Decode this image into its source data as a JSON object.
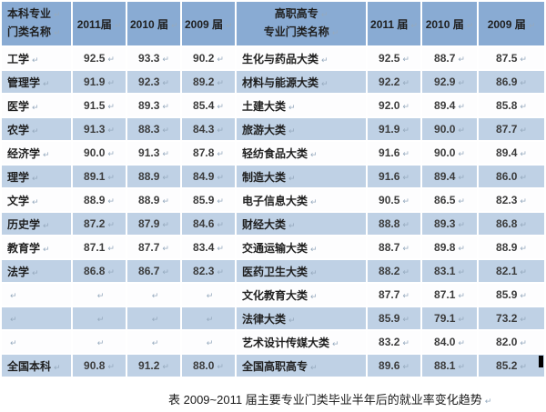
{
  "paragraph_mark": "↵",
  "caption": "表  2009~2011 届主要专业门类毕业半年后的就业率变化趋势",
  "colors": {
    "header_bg": "#89ABD3",
    "alt_row_bg": "#BFD1E5",
    "row_bg": "#FDFDFE",
    "grid": "#FFFFFF",
    "name_text": "#1F1F1F",
    "value_text": "#3C3C3C",
    "paragraph_mark_color": "#96AABE"
  },
  "table": {
    "undergrad_header": [
      "本科专业",
      "门类名称"
    ],
    "undergrad_years": [
      "2011届",
      "2010 届",
      "2009 届"
    ],
    "vocational_header": [
      "高职高专",
      "专业门类名称"
    ],
    "vocational_years": [
      "2011 届",
      "2010 届",
      "2009 届"
    ],
    "rows": [
      {
        "l_name": "工学",
        "l": [
          "92.5",
          "93.3",
          "90.2"
        ],
        "r_name": "生化与药品大类",
        "r": [
          "92.5",
          "88.7",
          "87.5"
        ]
      },
      {
        "l_name": "管理学",
        "l": [
          "91.9",
          "92.3",
          "89.2"
        ],
        "r_name": "材料与能源大类",
        "r": [
          "92.2",
          "92.9",
          "86.9"
        ]
      },
      {
        "l_name": "医学",
        "l": [
          "91.5",
          "89.3",
          "85.4"
        ],
        "r_name": "土建大类",
        "r": [
          "92.0",
          "89.4",
          "85.8"
        ]
      },
      {
        "l_name": "农学",
        "l": [
          "91.3",
          "88.3",
          "84.3"
        ],
        "r_name": "旅游大类",
        "r": [
          "91.9",
          "90.0",
          "87.7"
        ]
      },
      {
        "l_name": "经济学",
        "l": [
          "90.0",
          "91.3",
          "87.8"
        ],
        "r_name": "轻纺食品大类",
        "r": [
          "91.6",
          "90.0",
          "89.4"
        ]
      },
      {
        "l_name": "理学",
        "l": [
          "89.1",
          "88.9",
          "84.9"
        ],
        "r_name": "制造大类",
        "r": [
          "91.6",
          "89.4",
          "86.0"
        ]
      },
      {
        "l_name": "文学",
        "l": [
          "88.9",
          "88.9",
          "85.9"
        ],
        "r_name": "电子信息大类",
        "r": [
          "90.5",
          "86.5",
          "82.3"
        ]
      },
      {
        "l_name": "历史学",
        "l": [
          "87.2",
          "87.9",
          "84.6"
        ],
        "r_name": "财经大类",
        "r": [
          "88.8",
          "89.3",
          "86.8"
        ]
      },
      {
        "l_name": "教育学",
        "l": [
          "87.1",
          "87.7",
          "83.4"
        ],
        "r_name": "交通运输大类",
        "r": [
          "88.7",
          "89.8",
          "88.9"
        ]
      },
      {
        "l_name": "法学",
        "l": [
          "86.8",
          "86.7",
          "82.3"
        ],
        "r_name": "医药卫生大类",
        "r": [
          "88.2",
          "83.1",
          "82.1"
        ]
      },
      {
        "l_name": "",
        "l": [
          "",
          "",
          ""
        ],
        "r_name": "文化教育大类",
        "r": [
          "87.7",
          "87.1",
          "85.9"
        ]
      },
      {
        "l_name": "",
        "l": [
          "",
          "",
          ""
        ],
        "r_name": "法律大类",
        "r": [
          "85.9",
          "79.1",
          "73.2"
        ]
      },
      {
        "l_name": "",
        "l": [
          "",
          "",
          ""
        ],
        "r_name": "艺术设计传媒大类",
        "r": [
          "83.2",
          "84.0",
          "82.0"
        ]
      },
      {
        "l_name": "全国本科",
        "l": [
          "90.8",
          "91.2",
          "88.0"
        ],
        "r_name": "全国高职高专",
        "r": [
          "89.6",
          "88.1",
          "85.2"
        ],
        "total": true
      }
    ]
  }
}
